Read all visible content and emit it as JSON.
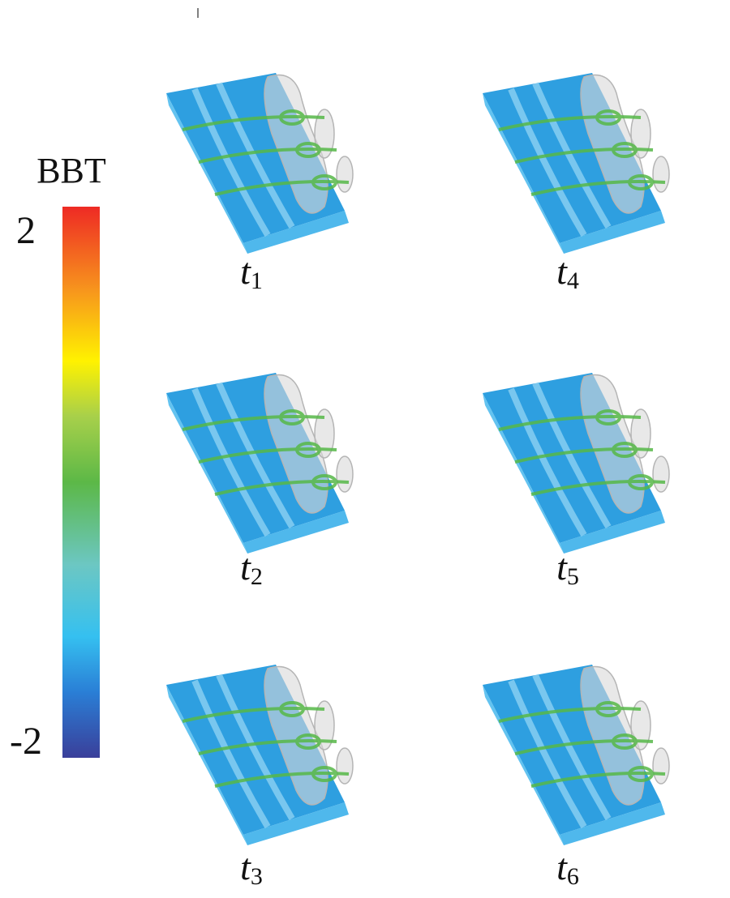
{
  "colorbar": {
    "title": "BBT",
    "max": 2,
    "min": -2
  },
  "panels": [
    {
      "symbol": "t",
      "subscript": "1"
    },
    {
      "symbol": "t",
      "subscript": "2"
    },
    {
      "symbol": "t",
      "subscript": "3"
    },
    {
      "symbol": "t",
      "subscript": "4"
    },
    {
      "symbol": "t",
      "subscript": "5"
    },
    {
      "symbol": "t",
      "subscript": "6"
    }
  ]
}
